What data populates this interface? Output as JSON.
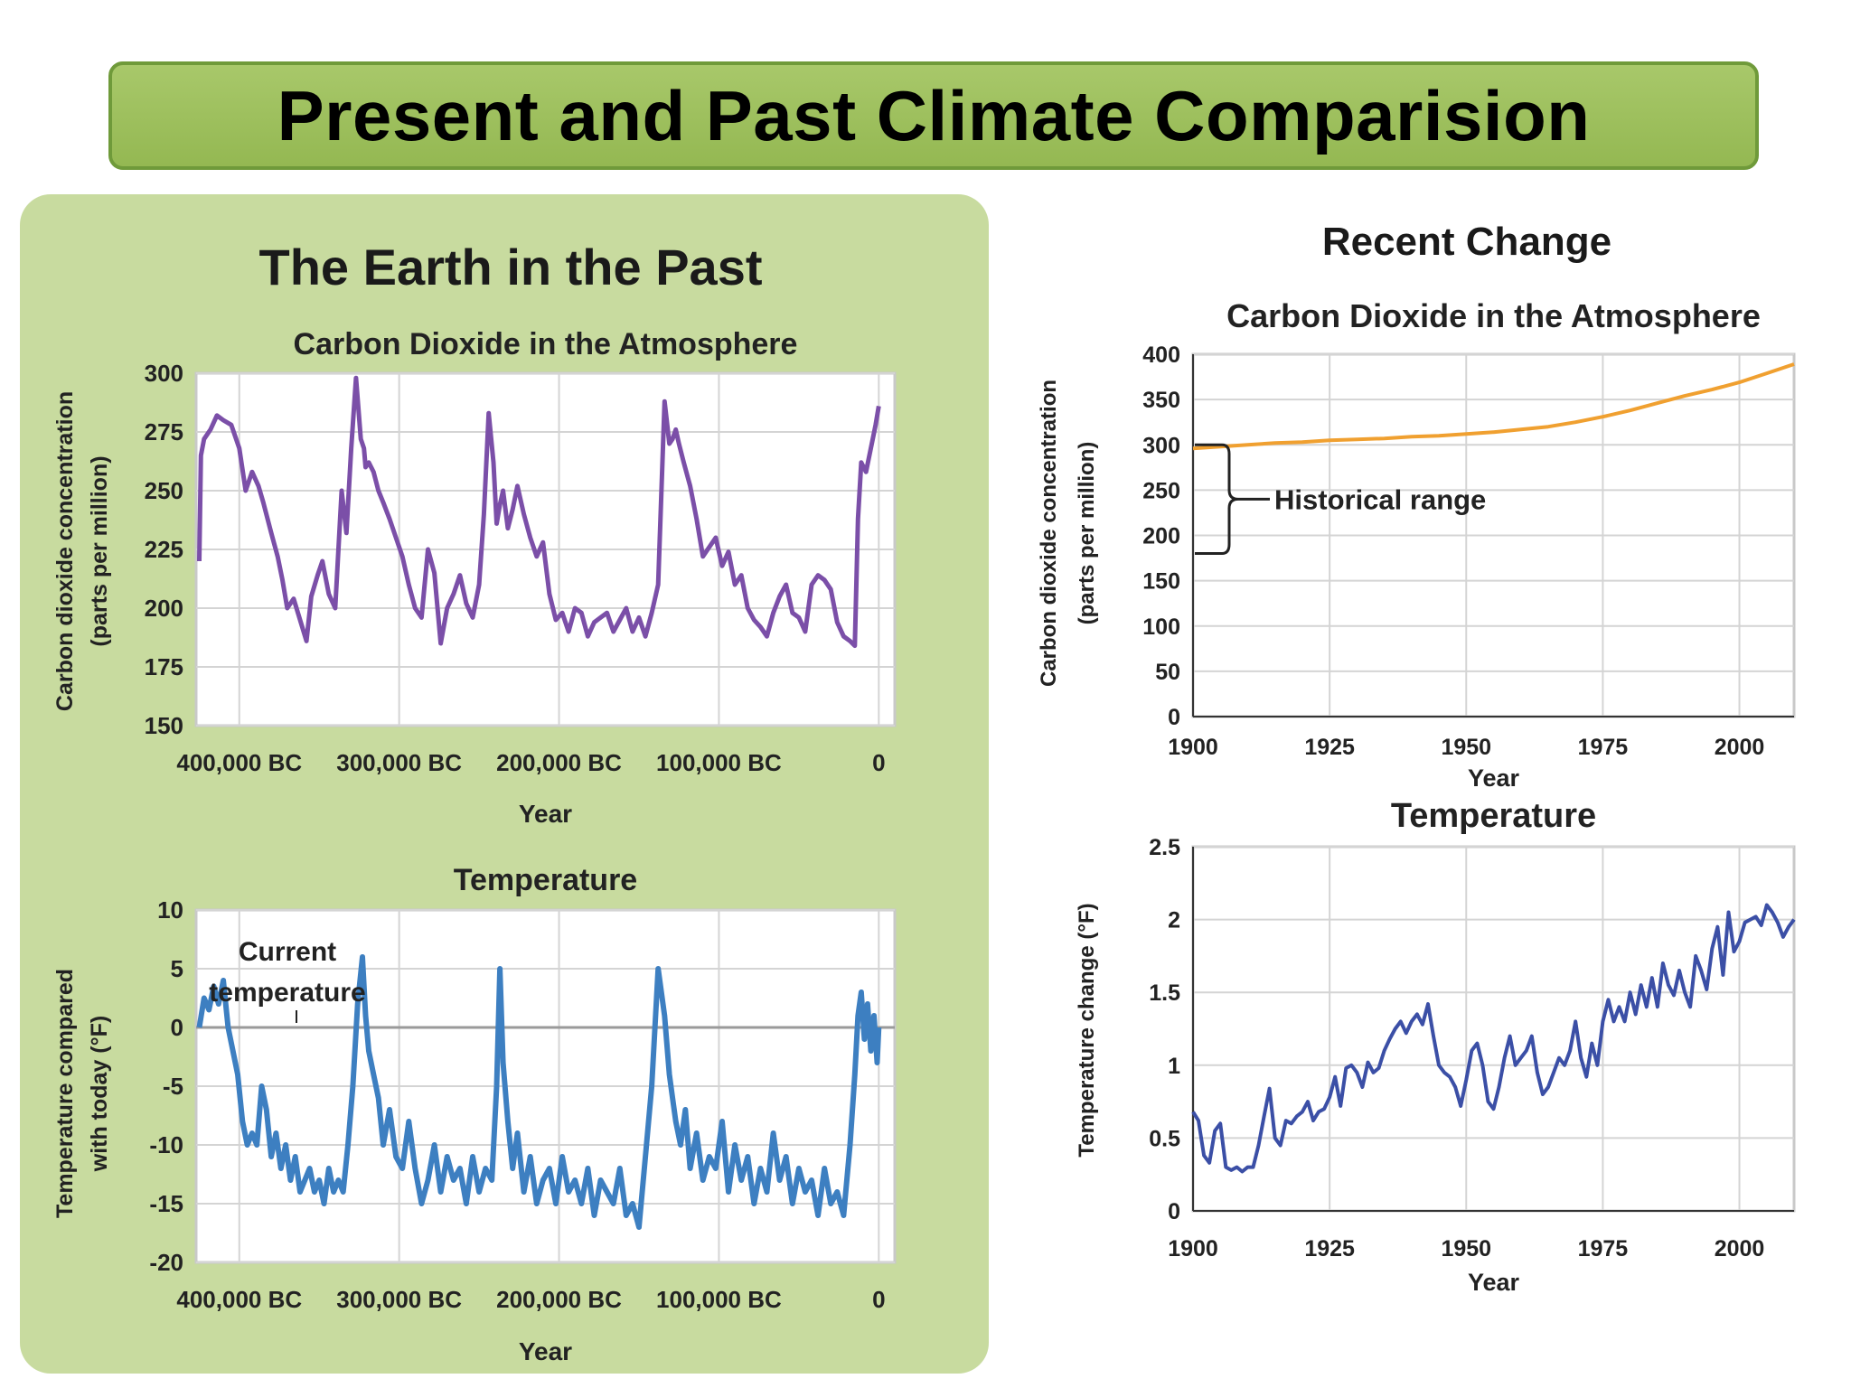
{
  "page_title": "Present and Past Climate Comparision",
  "colors": {
    "banner": "#9dbf5e",
    "panel": "#c8db9f",
    "past_co2_line": "#7b4fa8",
    "past_temp_line": "#3d7fc1",
    "recent_co2_line": "#f0a030",
    "recent_temp_line": "#3b4fa6"
  },
  "past": {
    "heading": "The Earth in the Past"
  },
  "recent": {
    "heading": "Recent Change"
  },
  "chart_data": [
    {
      "id": "past_co2",
      "type": "line",
      "title": "Carbon Dioxide in the Atmosphere",
      "xlabel": "Year",
      "ylabel": "Carbon dioxide concentration",
      "ylabel2": "(parts per million)",
      "xlim": [
        -427000,
        10000
      ],
      "ylim": [
        150,
        300
      ],
      "xticks": [
        -400000,
        -300000,
        -200000,
        -100000,
        0
      ],
      "xtick_labels": [
        "400,000 BC",
        "300,000 BC",
        "200,000 BC",
        "100,000 BC",
        "0"
      ],
      "yticks": [
        150,
        175,
        200,
        225,
        250,
        275,
        300
      ],
      "ytick_labels": [
        "150",
        "175",
        "200",
        "225",
        "250",
        "275",
        "300"
      ],
      "grid": true,
      "series": [
        {
          "x": [
            -425000,
            -424000,
            -422000,
            -418000,
            -414000,
            -410000,
            -405000,
            -400000,
            -396000,
            -392000,
            -388000,
            -385000,
            -380000,
            -376000,
            -373000,
            -370000,
            -366000,
            -362000,
            -358000,
            -355000,
            -351000,
            -348000,
            -344000,
            -340000,
            -336000,
            -333000,
            -330000,
            -327000,
            -324000,
            -322000,
            -321000,
            -319000,
            -316000,
            -313000,
            -310000,
            -306000,
            -302000,
            -298000,
            -294000,
            -290000,
            -286000,
            -282000,
            -278000,
            -274000,
            -270000,
            -266000,
            -262000,
            -258000,
            -254000,
            -250000,
            -247000,
            -244000,
            -241000,
            -239000,
            -237000,
            -235000,
            -232000,
            -229000,
            -226000,
            -222000,
            -218000,
            -214000,
            -210000,
            -206000,
            -202000,
            -198000,
            -194000,
            -190000,
            -186000,
            -182000,
            -178000,
            -174000,
            -170000,
            -166000,
            -162000,
            -158000,
            -154000,
            -150000,
            -146000,
            -142000,
            -138000,
            -134000,
            -131000,
            -129000,
            -127000,
            -125000,
            -122000,
            -118000,
            -114000,
            -110000,
            -106000,
            -102000,
            -98000,
            -94000,
            -90000,
            -86000,
            -82000,
            -78000,
            -74000,
            -70000,
            -66000,
            -62000,
            -58000,
            -54000,
            -50000,
            -46000,
            -42000,
            -38000,
            -34000,
            -30000,
            -26000,
            -22000,
            -18000,
            -15000,
            -13000,
            -11000,
            -8000,
            -5000,
            -2000,
            0
          ],
          "y": [
            220,
            265,
            272,
            276,
            282,
            280,
            278,
            268,
            250,
            258,
            252,
            245,
            232,
            222,
            212,
            200,
            204,
            195,
            186,
            205,
            214,
            220,
            206,
            200,
            250,
            232,
            268,
            298,
            272,
            268,
            260,
            262,
            258,
            250,
            245,
            238,
            230,
            222,
            210,
            200,
            196,
            225,
            215,
            185,
            200,
            206,
            214,
            202,
            196,
            210,
            240,
            283,
            262,
            236,
            244,
            250,
            234,
            242,
            252,
            240,
            230,
            222,
            228,
            206,
            195,
            198,
            190,
            200,
            198,
            188,
            194,
            196,
            198,
            190,
            195,
            200,
            190,
            196,
            188,
            198,
            210,
            288,
            270,
            272,
            276,
            270,
            262,
            252,
            238,
            222,
            226,
            230,
            218,
            224,
            210,
            214,
            200,
            195,
            192,
            188,
            198,
            205,
            210,
            198,
            196,
            190,
            210,
            214,
            212,
            208,
            194,
            188,
            186,
            184,
            238,
            262,
            258,
            268,
            278,
            286
          ]
        }
      ]
    },
    {
      "id": "past_temp",
      "type": "line",
      "title": "Temperature",
      "xlabel": "Year",
      "ylabel": "Temperature compared",
      "ylabel2": "with today (°F)",
      "xlim": [
        -427000,
        10000
      ],
      "ylim": [
        -20,
        10
      ],
      "xticks": [
        -400000,
        -300000,
        -200000,
        -100000,
        0
      ],
      "xtick_labels": [
        "400,000 BC",
        "300,000 BC",
        "200,000 BC",
        "100,000 BC",
        "0"
      ],
      "yticks": [
        -20,
        -15,
        -10,
        -5,
        0,
        5,
        10
      ],
      "ytick_labels": [
        "-20",
        "-15",
        "-10",
        "-5",
        "0",
        "5",
        "10"
      ],
      "grid": true,
      "reference_y": 0,
      "annotation": {
        "text_line1": "Current",
        "text_line2": "temperature"
      },
      "series": [
        {
          "x": [
            -425000,
            -422000,
            -419000,
            -416000,
            -413000,
            -410000,
            -407000,
            -404000,
            -401000,
            -398000,
            -395000,
            -392000,
            -389000,
            -386000,
            -383000,
            -380000,
            -377000,
            -374000,
            -371000,
            -368000,
            -365000,
            -362000,
            -359000,
            -356000,
            -353000,
            -350000,
            -347000,
            -344000,
            -341000,
            -338000,
            -335000,
            -332000,
            -329000,
            -326000,
            -323000,
            -321000,
            -319000,
            -316000,
            -313000,
            -310000,
            -306000,
            -302000,
            -298000,
            -294000,
            -290000,
            -286000,
            -282000,
            -278000,
            -274000,
            -270000,
            -266000,
            -262000,
            -258000,
            -254000,
            -250000,
            -246000,
            -242000,
            -239000,
            -237000,
            -235000,
            -232000,
            -229000,
            -226000,
            -222000,
            -218000,
            -214000,
            -210000,
            -206000,
            -202000,
            -198000,
            -194000,
            -190000,
            -186000,
            -182000,
            -178000,
            -174000,
            -170000,
            -166000,
            -162000,
            -158000,
            -154000,
            -150000,
            -146000,
            -142000,
            -138000,
            -134000,
            -131000,
            -129000,
            -127000,
            -124000,
            -121000,
            -118000,
            -114000,
            -110000,
            -106000,
            -102000,
            -98000,
            -94000,
            -90000,
            -86000,
            -82000,
            -78000,
            -74000,
            -70000,
            -66000,
            -62000,
            -58000,
            -54000,
            -50000,
            -46000,
            -42000,
            -38000,
            -34000,
            -30000,
            -26000,
            -22000,
            -18000,
            -15000,
            -13000,
            -11000,
            -9000,
            -7000,
            -5000,
            -3000,
            -1000,
            0
          ],
          "y": [
            0,
            2.5,
            1.5,
            3.5,
            2,
            4,
            0,
            -2,
            -4,
            -8,
            -10,
            -9,
            -10,
            -5,
            -7,
            -11,
            -9,
            -12,
            -10,
            -13,
            -11,
            -14,
            -13,
            -12,
            -14,
            -13,
            -15,
            -12,
            -14,
            -13,
            -14,
            -10,
            -5,
            2,
            6,
            1,
            -2,
            -4,
            -6,
            -10,
            -7,
            -11,
            -12,
            -8,
            -12,
            -15,
            -13,
            -10,
            -14,
            -11,
            -13,
            -12,
            -15,
            -11,
            -14,
            -12,
            -13,
            -5,
            5,
            -3,
            -8,
            -12,
            -9,
            -14,
            -11,
            -15,
            -13,
            -12,
            -15,
            -11,
            -14,
            -13,
            -15,
            -12,
            -16,
            -13,
            -14,
            -15,
            -12,
            -16,
            -15,
            -17,
            -11,
            -5,
            5,
            1,
            -4,
            -6,
            -8,
            -10,
            -7,
            -12,
            -9,
            -13,
            -11,
            -12,
            -8,
            -14,
            -10,
            -13,
            -11,
            -15,
            -12,
            -14,
            -9,
            -13,
            -11,
            -15,
            -12,
            -14,
            -13,
            -16,
            -12,
            -15,
            -14,
            -16,
            -10,
            -4,
            1,
            3,
            -1,
            2,
            -2,
            1,
            -3,
            0
          ]
        }
      ]
    },
    {
      "id": "recent_co2",
      "type": "line",
      "title": "Carbon Dioxide in the Atmosphere",
      "xlabel": "Year",
      "ylabel": "Carbon dioxide concentration",
      "ylabel2": "(parts per million)",
      "xlim": [
        1900,
        2010
      ],
      "ylim": [
        0,
        400
      ],
      "xticks": [
        1900,
        1925,
        1950,
        1975,
        2000
      ],
      "xtick_labels": [
        "1900",
        "1925",
        "1950",
        "1975",
        "2000"
      ],
      "yticks": [
        0,
        50,
        100,
        150,
        200,
        250,
        300,
        350,
        400
      ],
      "ytick_labels": [
        "0",
        "50",
        "100",
        "150",
        "200",
        "250",
        "300",
        "350",
        "400"
      ],
      "grid": true,
      "annotation": {
        "text": "Historical range",
        "y_range": [
          180,
          300
        ]
      },
      "series": [
        {
          "x": [
            1900,
            1905,
            1910,
            1915,
            1920,
            1925,
            1930,
            1935,
            1940,
            1945,
            1950,
            1955,
            1960,
            1965,
            1970,
            1975,
            1980,
            1985,
            1990,
            1995,
            2000,
            2005,
            2010
          ],
          "y": [
            296,
            298,
            300,
            302,
            303,
            305,
            306,
            307,
            309,
            310,
            312,
            314,
            317,
            320,
            325,
            331,
            338,
            346,
            354,
            361,
            369,
            379,
            389
          ]
        }
      ]
    },
    {
      "id": "recent_temp",
      "type": "line",
      "title": "Temperature",
      "xlabel": "Year",
      "ylabel": "Temperature change (°F)",
      "xlim": [
        1900,
        2010
      ],
      "ylim": [
        0,
        2.5
      ],
      "xticks": [
        1900,
        1925,
        1950,
        1975,
        2000
      ],
      "xtick_labels": [
        "1900",
        "1925",
        "1950",
        "1975",
        "2000"
      ],
      "yticks": [
        0,
        0.5,
        1,
        1.5,
        2,
        2.5
      ],
      "ytick_labels": [
        "0",
        "0.5",
        "1",
        "1.5",
        "2",
        "2.5"
      ],
      "grid": true,
      "series": [
        {
          "x": [
            1900,
            1901,
            1902,
            1903,
            1904,
            1905,
            1906,
            1907,
            1908,
            1909,
            1910,
            1911,
            1912,
            1913,
            1914,
            1915,
            1916,
            1917,
            1918,
            1919,
            1920,
            1921,
            1922,
            1923,
            1924,
            1925,
            1926,
            1927,
            1928,
            1929,
            1930,
            1931,
            1932,
            1933,
            1934,
            1935,
            1936,
            1937,
            1938,
            1939,
            1940,
            1941,
            1942,
            1943,
            1944,
            1945,
            1946,
            1947,
            1948,
            1949,
            1950,
            1951,
            1952,
            1953,
            1954,
            1955,
            1956,
            1957,
            1958,
            1959,
            1960,
            1961,
            1962,
            1963,
            1964,
            1965,
            1966,
            1967,
            1968,
            1969,
            1970,
            1971,
            1972,
            1973,
            1974,
            1975,
            1976,
            1977,
            1978,
            1979,
            1980,
            1981,
            1982,
            1983,
            1984,
            1985,
            1986,
            1987,
            1988,
            1989,
            1990,
            1991,
            1992,
            1993,
            1994,
            1995,
            1996,
            1997,
            1998,
            1999,
            2000,
            2001,
            2002,
            2003,
            2004,
            2005,
            2006,
            2007,
            2008,
            2009,
            2010
          ],
          "y": [
            0.68,
            0.62,
            0.38,
            0.33,
            0.55,
            0.6,
            0.3,
            0.28,
            0.3,
            0.27,
            0.3,
            0.3,
            0.45,
            0.65,
            0.84,
            0.5,
            0.45,
            0.62,
            0.6,
            0.65,
            0.68,
            0.75,
            0.62,
            0.68,
            0.7,
            0.78,
            0.92,
            0.72,
            0.98,
            1.0,
            0.95,
            0.85,
            1.02,
            0.95,
            0.98,
            1.1,
            1.18,
            1.25,
            1.3,
            1.22,
            1.3,
            1.35,
            1.28,
            1.42,
            1.2,
            1.0,
            0.95,
            0.92,
            0.85,
            0.72,
            0.9,
            1.1,
            1.15,
            1.0,
            0.75,
            0.7,
            0.85,
            1.05,
            1.2,
            1.0,
            1.05,
            1.1,
            1.2,
            0.95,
            0.8,
            0.85,
            0.95,
            1.05,
            1.0,
            1.1,
            1.3,
            1.05,
            0.92,
            1.15,
            1.0,
            1.3,
            1.45,
            1.3,
            1.4,
            1.3,
            1.5,
            1.35,
            1.55,
            1.4,
            1.6,
            1.4,
            1.7,
            1.55,
            1.48,
            1.65,
            1.5,
            1.4,
            1.75,
            1.65,
            1.52,
            1.8,
            1.95,
            1.62,
            2.05,
            1.78,
            1.85,
            1.98,
            2.0,
            2.02,
            1.96,
            2.1,
            2.05,
            1.98,
            1.88,
            1.95,
            2.0
          ]
        }
      ]
    }
  ]
}
